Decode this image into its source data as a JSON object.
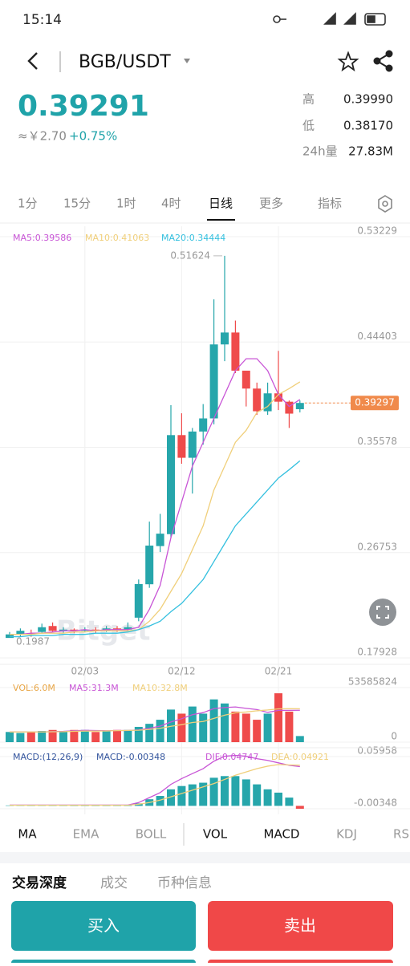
{
  "status_bar": {
    "time": "15:14"
  },
  "header": {
    "pair": "BGB/USDT"
  },
  "ticker": {
    "price": "0.39291",
    "cny": "≈￥2.70",
    "change": "+0.75%",
    "stats": [
      {
        "label": "高",
        "value": "0.39990"
      },
      {
        "label": "低",
        "value": "0.38170"
      },
      {
        "label": "24h量",
        "value": "27.83M"
      }
    ]
  },
  "intervals": [
    "1分",
    "15分",
    "1时",
    "4时",
    "日线",
    "更多",
    "指标"
  ],
  "watermark": "Bitget",
  "chart_data": [
    {
      "type": "candlestick",
      "categories": [
        null,
        null,
        null,
        null,
        null,
        null,
        null,
        "02/03",
        null,
        null,
        null,
        null,
        null,
        null,
        null,
        null,
        "02/12",
        null,
        null,
        null,
        null,
        null,
        null,
        null,
        null,
        "02/21",
        null,
        null
      ],
      "open": [
        0.196,
        0.199,
        0.2,
        0.201,
        0.206,
        0.202,
        0.203,
        0.202,
        0.203,
        0.202,
        0.204,
        0.203,
        0.213,
        0.241,
        0.273,
        0.283,
        0.366,
        0.347,
        0.369,
        0.38,
        0.442,
        0.452,
        0.42,
        0.405,
        0.386,
        0.401,
        0.394,
        0.3877
      ],
      "high": [
        0.201,
        0.204,
        0.203,
        0.208,
        0.209,
        0.205,
        0.204,
        0.205,
        0.205,
        0.206,
        0.206,
        0.209,
        0.245,
        0.2935,
        0.3,
        0.3911,
        0.3843,
        0.372,
        0.392,
        0.4798,
        0.51624,
        0.462,
        0.42,
        0.41,
        0.41,
        0.4366,
        0.395,
        0.395
      ],
      "low": [
        0.1987,
        0.197,
        0.197,
        0.2,
        0.201,
        0.2,
        0.2,
        0.201,
        0.2,
        0.201,
        0.201,
        0.202,
        0.21,
        0.238,
        0.268,
        0.28,
        0.342,
        0.317,
        0.358,
        0.375,
        0.428,
        0.418,
        0.39,
        0.383,
        0.383,
        0.387,
        0.372,
        0.385
      ],
      "close": [
        0.199,
        0.202,
        0.199,
        0.205,
        0.202,
        0.203,
        0.202,
        0.203,
        0.202,
        0.204,
        0.203,
        0.205,
        0.2412,
        0.2734,
        0.2834,
        0.366,
        0.347,
        0.369,
        0.38,
        0.442,
        0.452,
        0.42,
        0.405,
        0.386,
        0.401,
        0.394,
        0.384,
        0.39297
      ],
      "up_color": "#26a6ab",
      "down_color": "#ef4b4b",
      "series": [
        {
          "name": "MA5:0.39586",
          "color": "#c855d6",
          "values": [
            0.199,
            0.199,
            0.2,
            0.2,
            0.201,
            0.202,
            0.202,
            0.203,
            0.202,
            0.203,
            0.203,
            0.203,
            0.205,
            0.22,
            0.24,
            0.28,
            0.31,
            0.34,
            0.36,
            0.38,
            0.4,
            0.42,
            0.43,
            0.43,
            0.42,
            0.4,
            0.39,
            0.39586
          ]
        },
        {
          "name": "MA10:0.41063",
          "color": "#f0cf7a",
          "values": [
            0.199,
            0.199,
            0.199,
            0.2,
            0.2,
            0.2,
            0.201,
            0.201,
            0.202,
            0.202,
            0.202,
            0.202,
            0.203,
            0.21,
            0.22,
            0.235,
            0.25,
            0.27,
            0.29,
            0.32,
            0.34,
            0.36,
            0.37,
            0.385,
            0.39,
            0.4,
            0.405,
            0.41063
          ]
        },
        {
          "name": "MA20:0.34444",
          "color": "#34c0df",
          "values": [
            0.197,
            0.197,
            0.198,
            0.198,
            0.198,
            0.199,
            0.199,
            0.199,
            0.2,
            0.2,
            0.2,
            0.201,
            0.203,
            0.206,
            0.21,
            0.218,
            0.225,
            0.235,
            0.245,
            0.26,
            0.275,
            0.29,
            0.3,
            0.31,
            0.32,
            0.33,
            0.337,
            0.34444
          ]
        }
      ],
      "ylim": [
        0.17928,
        0.53229
      ],
      "yticks": [
        0.17928,
        0.26753,
        0.35578,
        0.44403,
        0.53229
      ],
      "last_price": 0.39297,
      "high_label": 0.51624,
      "low_label": 0.1987
    },
    {
      "type": "bar",
      "values": [
        10000000,
        9000000,
        10000000,
        11000000,
        12000000,
        11000000,
        12000000,
        12000000,
        10000000,
        11000000,
        12000000,
        12000000,
        15000000,
        18000000,
        22000000,
        32000000,
        28000000,
        35000000,
        28000000,
        42000000,
        38000000,
        30000000,
        28000000,
        22000000,
        28000000,
        48000000,
        30000000,
        6000000
      ],
      "series": [
        {
          "name": "VOL:6.0M",
          "color": "#e8a545"
        },
        {
          "name": "MA5:31.3M",
          "color": "#c855d6",
          "values": [
            10000000,
            10000000,
            10000000,
            10000000,
            10400000,
            10600000,
            11200000,
            11600000,
            11400000,
            11200000,
            11400000,
            11400000,
            12000000,
            13600000,
            15800000,
            19800000,
            23000000,
            27000000,
            29000000,
            33000000,
            34000000,
            34600000,
            33200000,
            32000000,
            29200000,
            31200000,
            31200000,
            31300000
          ]
        },
        {
          "name": "MA10:32.8M",
          "color": "#f0cf7a",
          "values": [
            10000000,
            10000000,
            10000000,
            10000000,
            10200000,
            10300000,
            10700000,
            10900000,
            10900000,
            11000000,
            11300000,
            11500000,
            11700000,
            12500000,
            13600000,
            15600000,
            17200000,
            19300000,
            20300000,
            23300000,
            26500000,
            28800000,
            29600000,
            30800000,
            31600000,
            32700000,
            32900000,
            32800000
          ]
        }
      ],
      "ylim": [
        0,
        53585824
      ],
      "yticks": [
        0,
        53585824
      ]
    },
    {
      "type": "macd",
      "values": [
        0.0005,
        0.0005,
        0.0004,
        0.0005,
        0.0004,
        0.0004,
        0.0003,
        0.0003,
        0.0003,
        0.0003,
        0.0003,
        0.0003,
        0.003,
        0.008,
        0.012,
        0.02,
        0.024,
        0.026,
        0.028,
        0.034,
        0.036,
        0.036,
        0.032,
        0.026,
        0.02,
        0.016,
        0.01,
        -0.00348
      ],
      "series": [
        {
          "name": "MACD:(12,26,9)",
          "color": "#34559e"
        },
        {
          "name": "MACD:-0.00348",
          "color": "#34559e"
        },
        {
          "name": "DIF:0.04747",
          "color": "#c855d6",
          "values": [
            0.001,
            0.001,
            0.001,
            0.001,
            0.001,
            0.001,
            0.001,
            0.001,
            0.001,
            0.001,
            0.001,
            0.001,
            0.004,
            0.01,
            0.016,
            0.026,
            0.033,
            0.039,
            0.045,
            0.054,
            0.06,
            0.061,
            0.06,
            0.057,
            0.055,
            0.052,
            0.049,
            0.04747
          ]
        },
        {
          "name": "DEA:0.04921",
          "color": "#f0cf7a",
          "values": [
            0.0008,
            0.0008,
            0.0008,
            0.0008,
            0.0008,
            0.0008,
            0.0008,
            0.0008,
            0.0008,
            0.0008,
            0.0008,
            0.0008,
            0.002,
            0.004,
            0.007,
            0.011,
            0.015,
            0.019,
            0.023,
            0.027,
            0.032,
            0.037,
            0.041,
            0.045,
            0.048,
            0.05,
            0.0495,
            0.04921
          ]
        }
      ],
      "ylim": [
        -0.00348,
        0.05958
      ],
      "yticks": [
        -0.00348,
        0.05958
      ]
    }
  ],
  "indicator_tabs": [
    "MA",
    "EMA",
    "BOLL",
    "VOL",
    "MACD",
    "KDJ",
    "RS"
  ],
  "tabs": [
    "交易深度",
    "成交",
    "币种信息"
  ],
  "buttons": {
    "buy": "买入",
    "sell": "卖出"
  }
}
